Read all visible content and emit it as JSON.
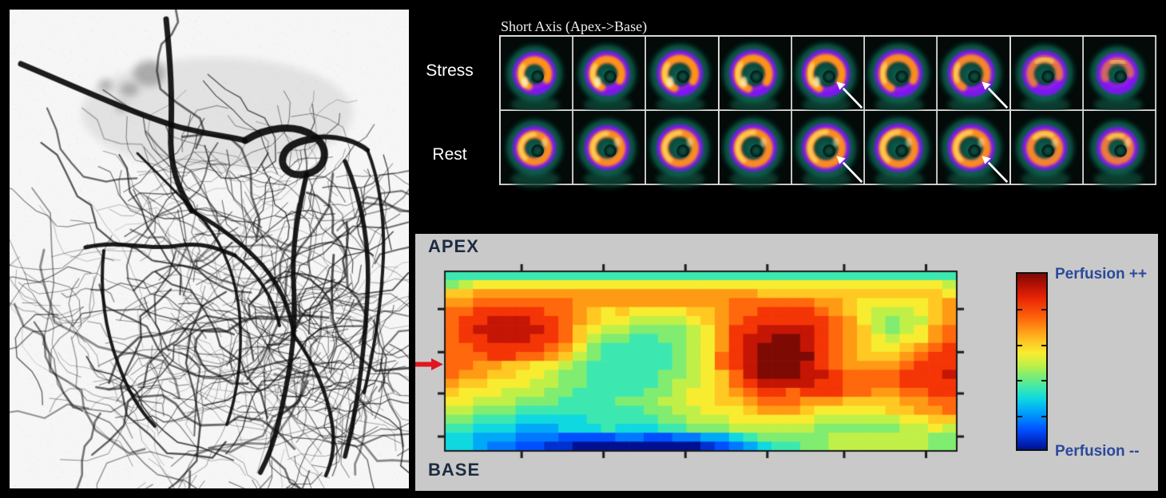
{
  "spect": {
    "title": "Short Axis (Apex->Base)",
    "columns": 9,
    "rows": [
      {
        "label": "Stress",
        "arrow_cells": [
          5,
          7
        ]
      },
      {
        "label": "Rest",
        "arrow_cells": [
          5,
          7
        ]
      }
    ],
    "arrow_color": "#ffffff",
    "palette": {
      "background": "#030a08",
      "glow": "#0f6653",
      "ring": "#7d18ee",
      "myocardium": "#ff9318",
      "hotspot": "#ffd75e"
    }
  },
  "perfusion": {
    "apex_label": "APEX",
    "base_label": "BASE",
    "pointer_color": "#e01622",
    "panel_color": "#c9c9c9",
    "colorbar": {
      "top_label": "Perfusion ++",
      "bottom_label": "Perfusion --",
      "label_color": "#2b4a9b"
    }
  },
  "chart_data": {
    "type": "heatmap",
    "title": "",
    "y_axis": {
      "top": "APEX",
      "bottom": "BASE"
    },
    "colormap": "jet",
    "legend": {
      "max": "Perfusion ++",
      "min": "Perfusion --",
      "position": "right"
    },
    "grid": {
      "cols": 36,
      "rows": 20
    },
    "x_ticks": 6,
    "y_ticks": 4,
    "value_scale": "one hex digit per cell: 0 = Perfusion --, f (15) = Perfusion ++",
    "values": [
      "666666666666666666666666666666666666",
      "789999999999999999999999999999999998",
      "aabbbbbbbbbbbbbbbbbbbbaaaaaaaaaaaaa9",
      "bbcccccccbbbbbbbbbbbccccccbba99999ab",
      "ccdddddccba9a9999aabccddddcba98889ab",
      "cddeeeddcba9988889abcddddddcb98788ab",
      "cdeeeeedca988777789bddeeeedcba8789bc",
      "cddeeeddca877667789bdeeffedcba9899bc",
      "ccdddddcb9766666789bdefffedcba99abcd",
      "cccddccba8766666789cdeffffdcbaaabcdd",
      "ccbbaa9987666666789cdefffedcbbbbcddd",
      "cbbaa99877666667789acefffeedccccddde",
      "baa9998877666667889acdeeeeddccccdddd",
      "a999888776666677899abcddcdddccbbccdd",
      "9988877766667778899aabcccbbbaaaabbcc",
      "887776666666667788999abbba99999aabbc",
      "7766655555666667788899999988888899aa",
      "665554445556555667778888887777778898",
      "554443332222332233445677777888888877",
      "554332211000000000123456677888888877"
    ]
  }
}
